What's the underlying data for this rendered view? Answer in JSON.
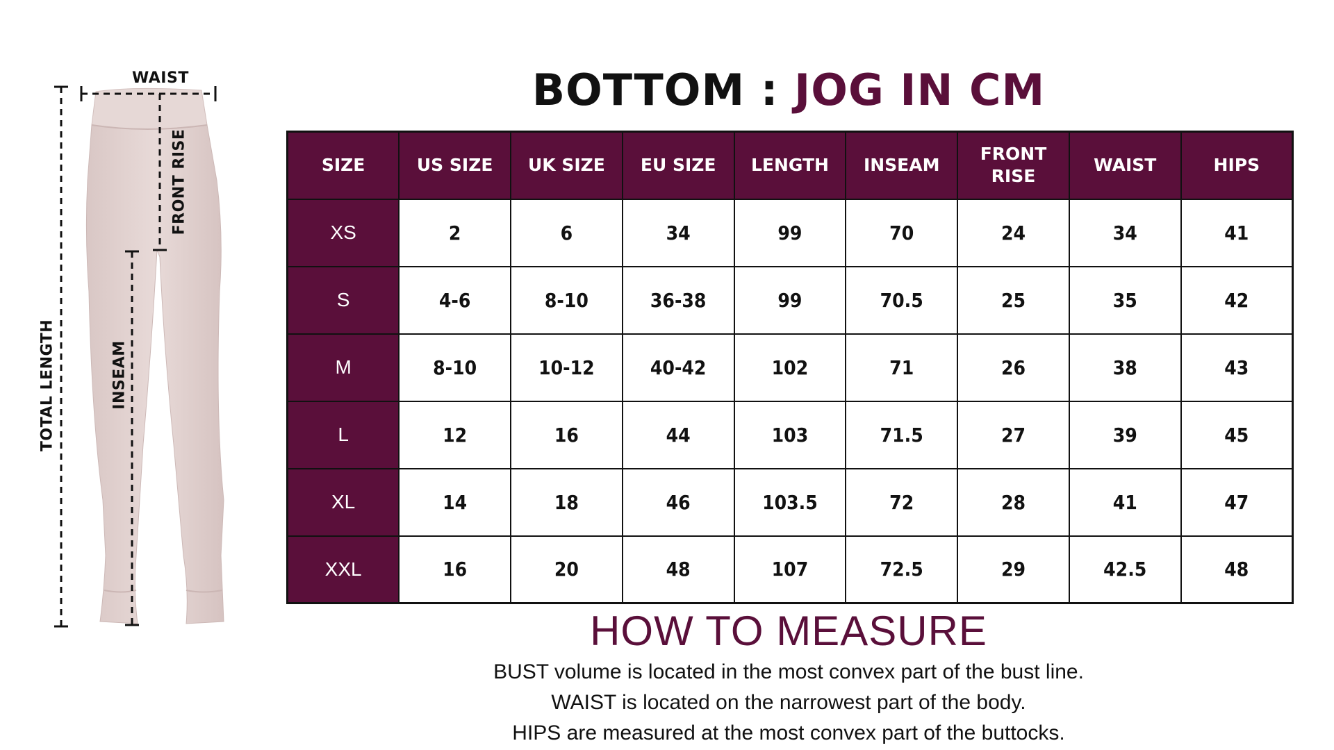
{
  "illustration": {
    "waist_label": "WAIST",
    "front_rise_label": "FRONT RISE",
    "inseam_label": "INSEAM",
    "total_length_label": "TOTAL LENGTH"
  },
  "title": {
    "part1": "BOTTOM : ",
    "part2": "JOG IN CM"
  },
  "table": {
    "headers": [
      "SIZE",
      "US SIZE",
      "UK SIZE",
      "EU SIZE",
      "LENGTH",
      "INSEAM",
      "FRONT RISE",
      "WAIST",
      "HIPS"
    ],
    "rows": [
      [
        "XS",
        "2",
        "6",
        "34",
        "99",
        "70",
        "24",
        "34",
        "41"
      ],
      [
        "S",
        "4-6",
        "8-10",
        "36-38",
        "99",
        "70.5",
        "25",
        "35",
        "42"
      ],
      [
        "M",
        "8-10",
        "10-12",
        "40-42",
        "102",
        "71",
        "26",
        "38",
        "43"
      ],
      [
        "L",
        "12",
        "16",
        "44",
        "103",
        "71.5",
        "27",
        "39",
        "45"
      ],
      [
        "XL",
        "14",
        "18",
        "46",
        "103.5",
        "72",
        "28",
        "41",
        "47"
      ],
      [
        "XXL",
        "16",
        "20",
        "48",
        "107",
        "72.5",
        "29",
        "42.5",
        "48"
      ]
    ]
  },
  "how_to_measure": {
    "title": "HOW TO MEASURE",
    "lines": [
      "BUST volume is located in the most convex part of the bust line.",
      "WAIST is located on the narrowest part of the body.",
      "HIPS are measured at the most convex part of the buttocks."
    ]
  },
  "colors": {
    "accent": "#5a0f3a",
    "pants": "#e3d3d1",
    "text": "#111111"
  }
}
